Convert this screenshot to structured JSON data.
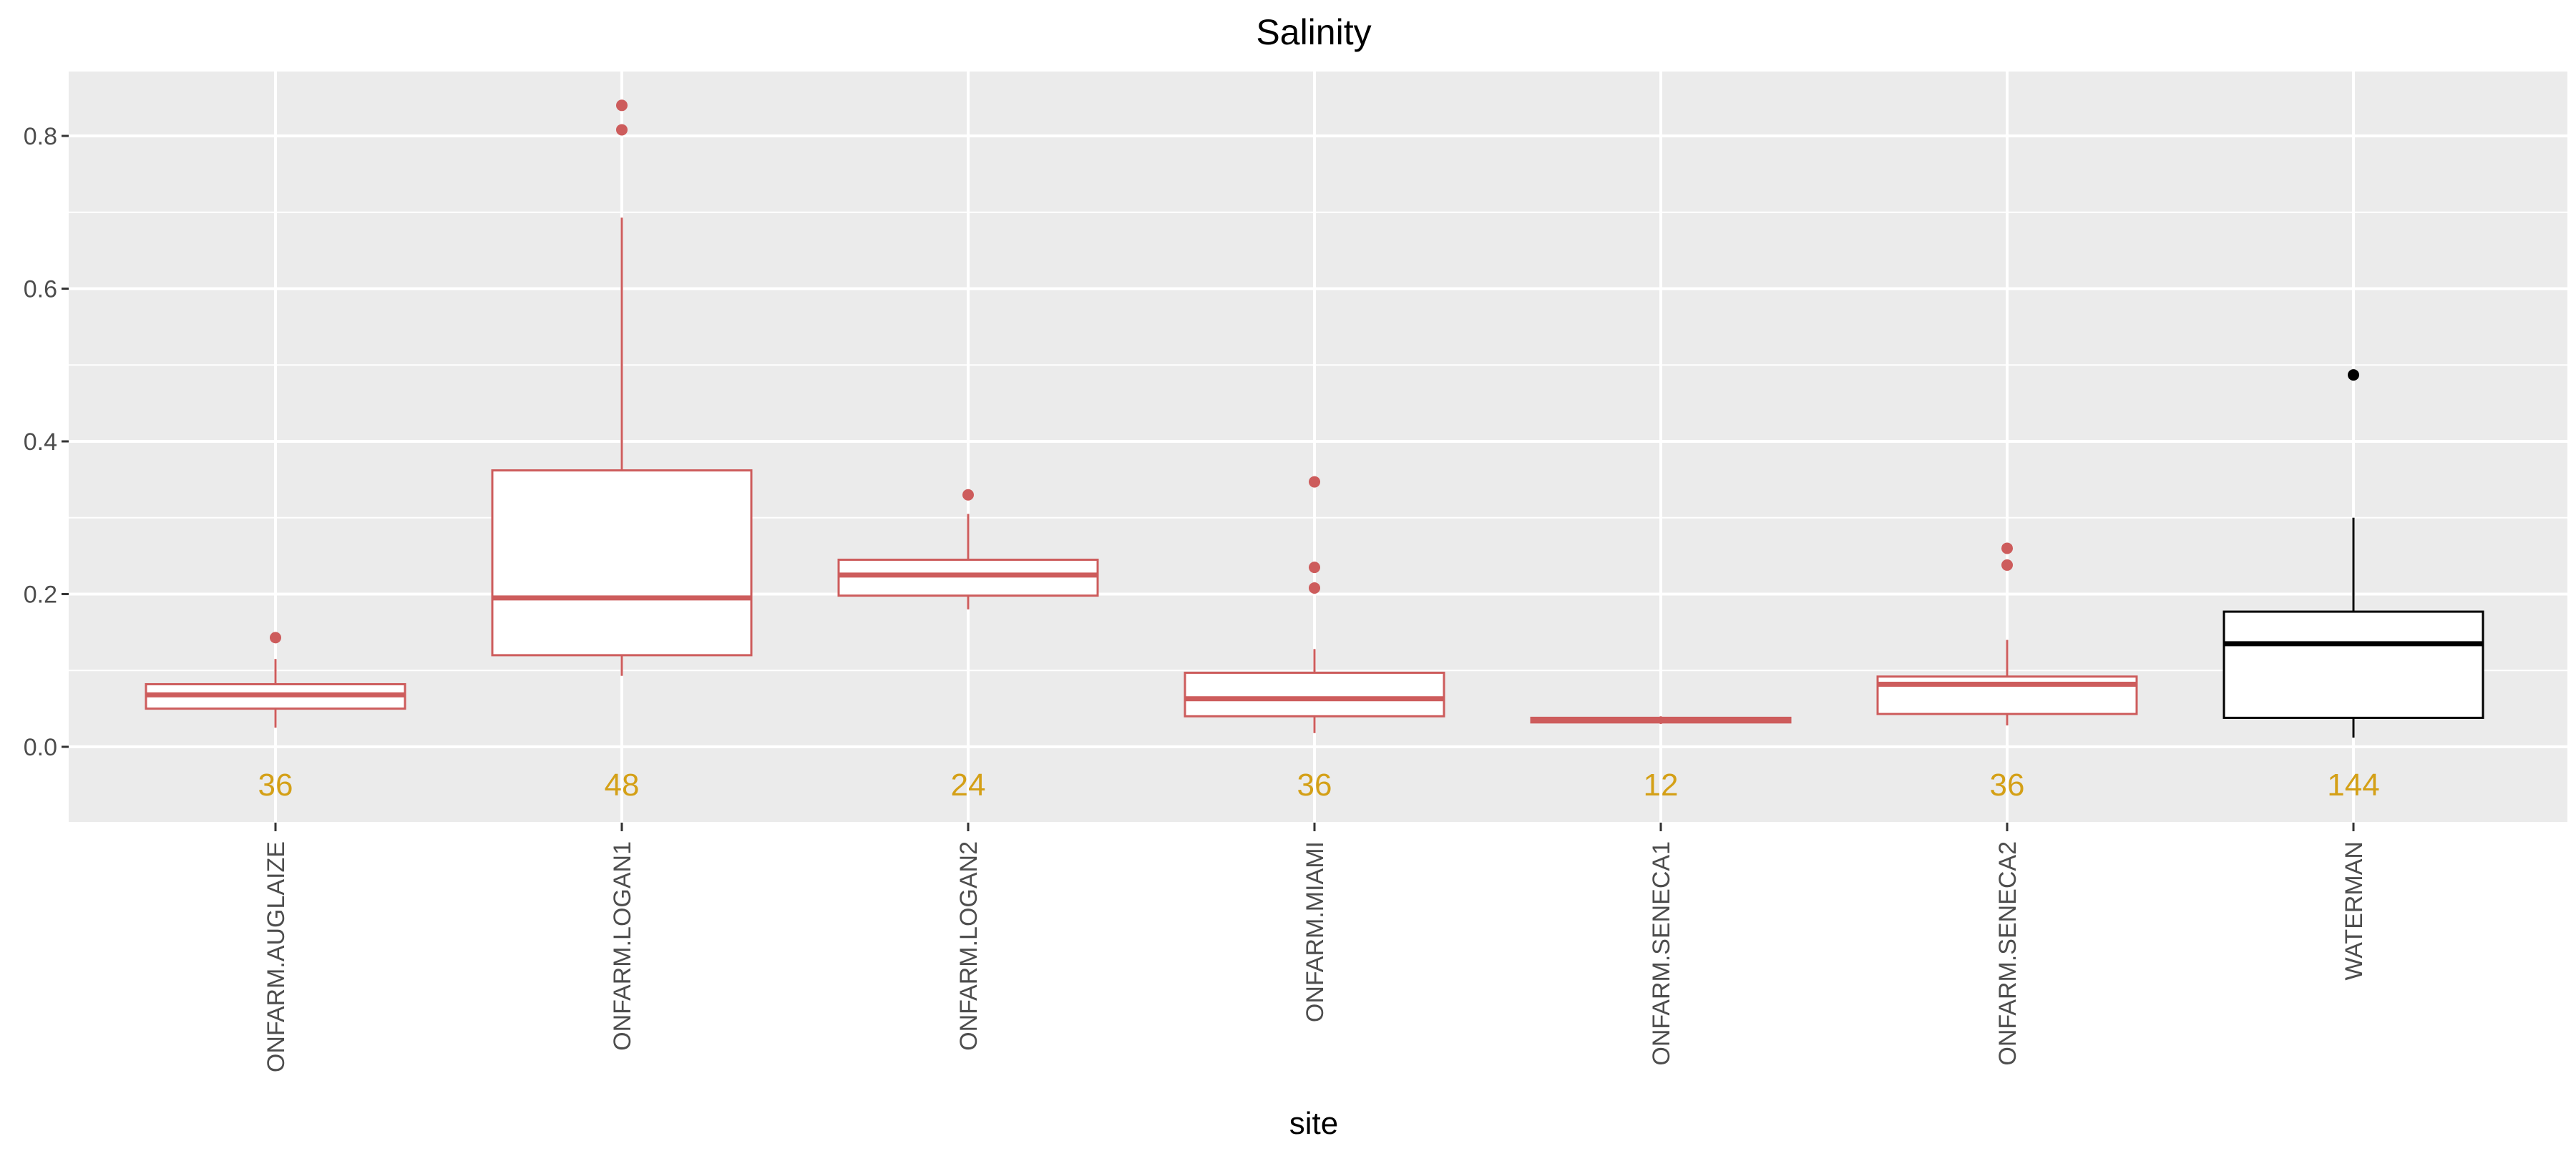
{
  "chart_data": {
    "type": "box",
    "title": "Salinity",
    "xlabel": "site",
    "ylabel": "",
    "ylim": [
      -0.1,
      0.88
    ],
    "yticks": [
      "0.0",
      "0.2",
      "0.4",
      "0.6",
      "0.8"
    ],
    "ytick_values": [
      0.0,
      0.2,
      0.4,
      0.6,
      0.8
    ],
    "grid": true,
    "colors": {
      "highlight": "#cd5c5c",
      "reference": "#000000",
      "count": "#d4a017",
      "panel": "#ebebeb",
      "gridline": "#ffffff"
    },
    "categories": [
      "ONFARM.AUGLAIZE",
      "ONFARM.LOGAN1",
      "ONFARM.LOGAN2",
      "ONFARM.MIAMI",
      "ONFARM.SENECA1",
      "ONFARM.SENECA2",
      "WATERMAN"
    ],
    "counts": [
      "36",
      "48",
      "24",
      "36",
      "12",
      "36",
      "144"
    ],
    "boxes": [
      {
        "name": "ONFARM.AUGLAIZE",
        "color": "#cd5c5c",
        "whisker_low": 0.025,
        "q1": 0.05,
        "median": 0.068,
        "q3": 0.082,
        "whisker_high": 0.115,
        "outliers": [
          0.143
        ]
      },
      {
        "name": "ONFARM.LOGAN1",
        "color": "#cd5c5c",
        "whisker_low": 0.093,
        "q1": 0.12,
        "median": 0.195,
        "q3": 0.362,
        "whisker_high": 0.693,
        "outliers": [
          0.808,
          0.84
        ]
      },
      {
        "name": "ONFARM.LOGAN2",
        "color": "#cd5c5c",
        "whisker_low": 0.18,
        "q1": 0.198,
        "median": 0.225,
        "q3": 0.245,
        "whisker_high": 0.305,
        "outliers": [
          0.33
        ]
      },
      {
        "name": "ONFARM.MIAMI",
        "color": "#cd5c5c",
        "whisker_low": 0.018,
        "q1": 0.04,
        "median": 0.063,
        "q3": 0.097,
        "whisker_high": 0.128,
        "outliers": [
          0.208,
          0.235,
          0.347
        ]
      },
      {
        "name": "ONFARM.SENECA1",
        "color": "#cd5c5c",
        "whisker_low": 0.03,
        "q1": 0.032,
        "median": 0.035,
        "q3": 0.038,
        "whisker_high": 0.04,
        "outliers": []
      },
      {
        "name": "ONFARM.SENECA2",
        "color": "#cd5c5c",
        "whisker_low": 0.028,
        "q1": 0.043,
        "median": 0.082,
        "q3": 0.092,
        "whisker_high": 0.14,
        "outliers": [
          0.238,
          0.26
        ]
      },
      {
        "name": "WATERMAN",
        "color": "#000000",
        "whisker_low": 0.012,
        "q1": 0.038,
        "median": 0.135,
        "q3": 0.177,
        "whisker_high": 0.3,
        "outliers": [
          0.487
        ]
      }
    ]
  }
}
